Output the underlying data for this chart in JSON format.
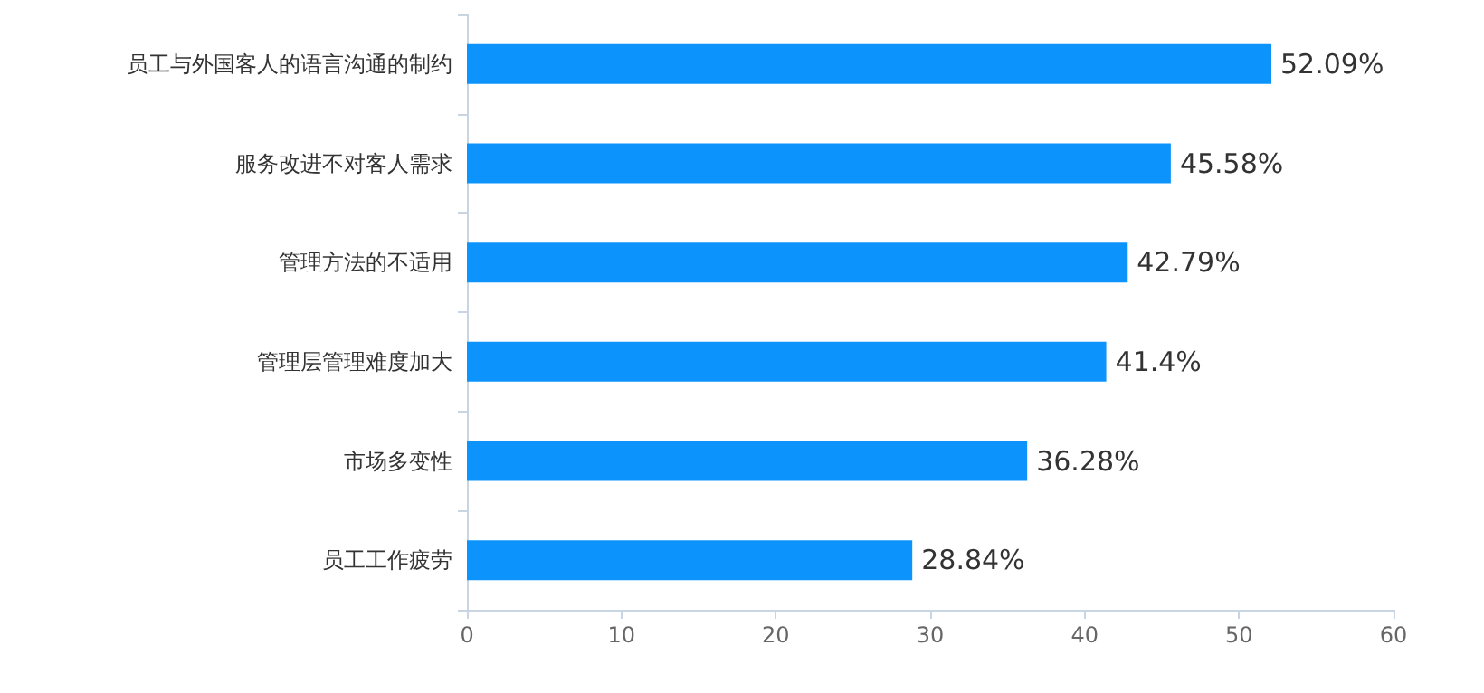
{
  "chart_data": {
    "type": "bar",
    "orientation": "horizontal",
    "categories": [
      "员工与外国客人的语言沟通的制约",
      "服务改进不对客人需求",
      "管理方法的不适用",
      "管理层管理难度加大",
      "市场多变性",
      "员工工作疲劳"
    ],
    "values": [
      52.09,
      45.58,
      42.79,
      41.4,
      36.28,
      28.84
    ],
    "value_labels": [
      "52.09%",
      "45.58%",
      "42.79%",
      "41.4%",
      "36.28%",
      "28.84%"
    ],
    "color": "#0d94fc",
    "xlim": [
      0,
      60
    ],
    "xticks": [
      0,
      10,
      20,
      30,
      40,
      50,
      60
    ],
    "grid": false
  }
}
